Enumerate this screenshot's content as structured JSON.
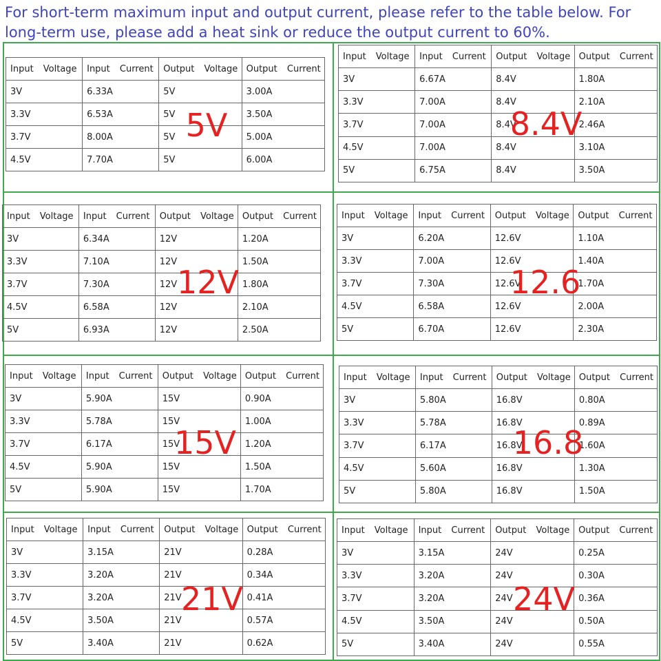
{
  "header": {
    "text": "For short-term maximum input and output current, please refer to the table below. For long-term use, please add a heat sink or reduce the output current to 60%."
  },
  "tables": [
    {
      "label": "5V",
      "columns": [
        "Input Voltage",
        "Input Current",
        "Output Voltage",
        "Output Current"
      ],
      "rows": [
        [
          "3V",
          "6.33A",
          "5V",
          "3.00A"
        ],
        [
          "3.3V",
          "6.53A",
          "5V",
          "3.50A"
        ],
        [
          "3.7V",
          "8.00A",
          "5V",
          "5.00A"
        ],
        [
          "4.5V",
          "7.70A",
          "5V",
          "6.00A"
        ]
      ]
    },
    {
      "label": "8.4V",
      "columns": [
        "Input Voltage",
        "Input Current",
        "Output Voltage",
        "Output Current"
      ],
      "rows": [
        [
          "3V",
          "6.67A",
          "8.4V",
          "1.80A"
        ],
        [
          "3.3V",
          "7.00A",
          "8.4V",
          "2.10A"
        ],
        [
          "3.7V",
          "7.00A",
          "8.4V",
          "2.46A"
        ],
        [
          "4.5V",
          "7.00A",
          "8.4V",
          "3.10A"
        ],
        [
          "5V",
          "6.75A",
          "8.4V",
          "3.50A"
        ]
      ]
    },
    {
      "label": "12V",
      "columns": [
        "Input Voltage",
        "Input Current",
        "Output Voltage",
        "Output Current"
      ],
      "rows": [
        [
          "3V",
          "6.34A",
          "12V",
          "1.20A"
        ],
        [
          "3.3V",
          "7.10A",
          "12V",
          "1.50A"
        ],
        [
          "3.7V",
          "7.30A",
          "12V",
          "1.80A"
        ],
        [
          "4.5V",
          "6.58A",
          "12V",
          "2.10A"
        ],
        [
          "5V",
          "6.93A",
          "12V",
          "2.50A"
        ]
      ]
    },
    {
      "label": "12.6",
      "columns": [
        "Input Voltage",
        "Input Current",
        "Output Voltage",
        "Output Current"
      ],
      "rows": [
        [
          "3V",
          "6.20A",
          "12.6V",
          "1.10A"
        ],
        [
          "3.3V",
          "7.00A",
          "12.6V",
          "1.40A"
        ],
        [
          "3.7V",
          "7.30A",
          "12.6V",
          "1.70A"
        ],
        [
          "4.5V",
          "6.58A",
          "12.6V",
          "2.00A"
        ],
        [
          "5V",
          "6.70A",
          "12.6V",
          "2.30A"
        ]
      ]
    },
    {
      "label": "15V",
      "columns": [
        "Input Voltage",
        "Input Current",
        "Output Voltage",
        "Output Current"
      ],
      "rows": [
        [
          "3V",
          "5.90A",
          "15V",
          "0.90A"
        ],
        [
          "3.3V",
          "5.78A",
          "15V",
          "1.00A"
        ],
        [
          "3.7V",
          "6.17A",
          "15V",
          "1.20A"
        ],
        [
          "4.5V",
          "5.90A",
          "15V",
          "1.50A"
        ],
        [
          "5V",
          "5.90A",
          "15V",
          "1.70A"
        ]
      ]
    },
    {
      "label": "16.8",
      "columns": [
        "Input Voltage",
        "Input Current",
        "Output Voltage",
        "Output Current"
      ],
      "rows": [
        [
          "3V",
          "5.80A",
          "16.8V",
          "0.80A"
        ],
        [
          "3.3V",
          "5.78A",
          "16.8V",
          "0.89A"
        ],
        [
          "3.7V",
          "6.17A",
          "16.8V",
          "1.60A"
        ],
        [
          "4.5V",
          "5.60A",
          "16.8V",
          "1.30A"
        ],
        [
          "5V",
          "5.80A",
          "16.8V",
          "1.50A"
        ]
      ]
    },
    {
      "label": "21V",
      "columns": [
        "Input Voltage",
        "Input Current",
        "Output Voltage",
        "Output Current"
      ],
      "rows": [
        [
          "3V",
          "3.15A",
          "21V",
          "0.28A"
        ],
        [
          "3.3V",
          "3.20A",
          "21V",
          "0.34A"
        ],
        [
          "3.7V",
          "3.20A",
          "21V",
          "0.41A"
        ],
        [
          "4.5V",
          "3.50A",
          "21V",
          "0.57A"
        ],
        [
          "5V",
          "3.40A",
          "21V",
          "0.62A"
        ]
      ]
    },
    {
      "label": "24V",
      "columns": [
        "Input Voltage",
        "Input Current",
        "Output Voltage",
        "Output Current"
      ],
      "rows": [
        [
          "3V",
          "3.15A",
          "24V",
          "0.25A"
        ],
        [
          "3.3V",
          "3.20A",
          "24V",
          "0.30A"
        ],
        [
          "3.7V",
          "3.20A",
          "24V",
          "0.36A"
        ],
        [
          "4.5V",
          "3.50A",
          "24V",
          "0.50A"
        ],
        [
          "5V",
          "3.40A",
          "24V",
          "0.55A"
        ]
      ]
    }
  ]
}
